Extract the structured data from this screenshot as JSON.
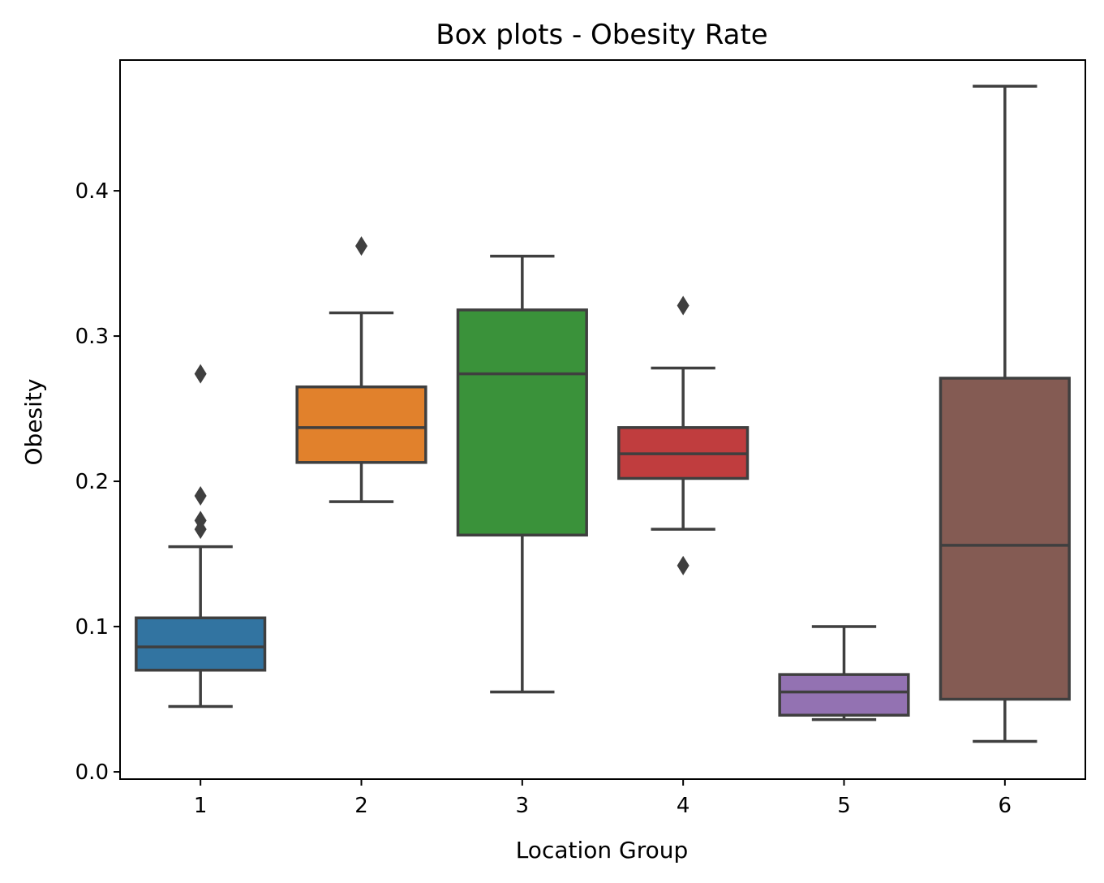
{
  "chart_data": {
    "type": "box",
    "title": "Box plots - Obesity Rate",
    "xlabel": "Location Group",
    "ylabel": "Obesity",
    "ylim": [
      -0.005,
      0.49
    ],
    "yticks": [
      0.0,
      0.1,
      0.2,
      0.3,
      0.4
    ],
    "ytick_labels": [
      "0.0",
      "0.1",
      "0.2",
      "0.3",
      "0.4"
    ],
    "grid": false,
    "line_color": "#3f3f3f",
    "categories": [
      "1",
      "2",
      "3",
      "4",
      "5",
      "6"
    ],
    "boxes": [
      {
        "label": "1",
        "whisker_low": 0.045,
        "q1": 0.07,
        "median": 0.086,
        "q3": 0.106,
        "whisker_high": 0.155,
        "outliers": [
          0.274,
          0.19,
          0.173,
          0.167
        ],
        "color": "#3274a1"
      },
      {
        "label": "2",
        "whisker_low": 0.186,
        "q1": 0.213,
        "median": 0.237,
        "q3": 0.265,
        "whisker_high": 0.316,
        "outliers": [
          0.362
        ],
        "color": "#e1812c"
      },
      {
        "label": "3",
        "whisker_low": 0.055,
        "q1": 0.163,
        "median": 0.274,
        "q3": 0.318,
        "whisker_high": 0.355,
        "outliers": [],
        "color": "#3a923a"
      },
      {
        "label": "4",
        "whisker_low": 0.167,
        "q1": 0.202,
        "median": 0.219,
        "q3": 0.237,
        "whisker_high": 0.278,
        "outliers": [
          0.321,
          0.142
        ],
        "color": "#c03d3e"
      },
      {
        "label": "5",
        "whisker_low": 0.036,
        "q1": 0.039,
        "median": 0.055,
        "q3": 0.067,
        "whisker_high": 0.1,
        "outliers": [],
        "color": "#9372b2"
      },
      {
        "label": "6",
        "whisker_low": 0.021,
        "q1": 0.05,
        "median": 0.156,
        "q3": 0.271,
        "whisker_high": 0.472,
        "outliers": [],
        "color": "#845b53"
      }
    ]
  }
}
